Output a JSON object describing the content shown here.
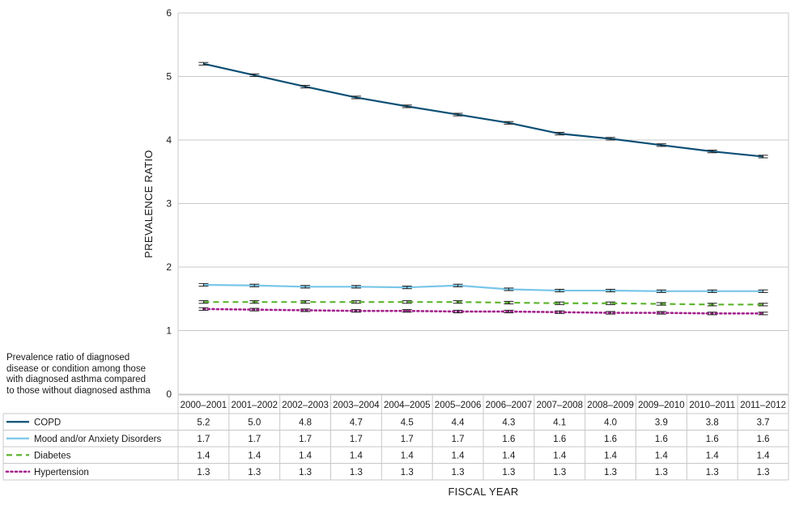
{
  "caption": "Prevalence ratio of diagnosed disease or condition among those with diagnosed asthma compared to those without diagnosed asthma",
  "chart_data": {
    "type": "line",
    "ylabel": "PREVALENCE RATIO",
    "xlabel": "FISCAL YEAR",
    "ylim": [
      0,
      6
    ],
    "yticks": [
      "0",
      "1",
      "2",
      "3",
      "4",
      "5",
      "6"
    ],
    "grid": true,
    "categories": [
      "2000–2001",
      "2001–2002",
      "2002–2003",
      "2003–2004",
      "2004–2005",
      "2005–2006",
      "2006–2007",
      "2007–2008",
      "2008–2009",
      "2009–2010",
      "2010–2011",
      "2011–2012"
    ],
    "series": [
      {
        "name": "COPD",
        "color": "#0b4f75",
        "style": "solid",
        "values": [
          5.2,
          5.02,
          4.84,
          4.67,
          4.53,
          4.4,
          4.27,
          4.1,
          4.02,
          3.92,
          3.82,
          3.74
        ],
        "table_values": [
          "5.2",
          "5.0",
          "4.8",
          "4.7",
          "4.5",
          "4.4",
          "4.3",
          "4.1",
          "4.0",
          "3.9",
          "3.8",
          "3.7"
        ]
      },
      {
        "name": "Mood and/or Anxiety Disorders",
        "color": "#78c6e8",
        "style": "solid",
        "values": [
          1.72,
          1.71,
          1.69,
          1.69,
          1.68,
          1.71,
          1.65,
          1.63,
          1.63,
          1.62,
          1.62,
          1.62
        ],
        "table_values": [
          "1.7",
          "1.7",
          "1.7",
          "1.7",
          "1.7",
          "1.7",
          "1.6",
          "1.6",
          "1.6",
          "1.6",
          "1.6",
          "1.6"
        ]
      },
      {
        "name": "Diabetes",
        "color": "#5db52f",
        "style": "dashed",
        "values": [
          1.45,
          1.45,
          1.45,
          1.45,
          1.45,
          1.45,
          1.44,
          1.43,
          1.43,
          1.42,
          1.41,
          1.41
        ],
        "table_values": [
          "1.4",
          "1.4",
          "1.4",
          "1.4",
          "1.4",
          "1.4",
          "1.4",
          "1.4",
          "1.4",
          "1.4",
          "1.4",
          "1.4"
        ]
      },
      {
        "name": "Hypertension",
        "color": "#a3238e",
        "style": "dotted",
        "values": [
          1.34,
          1.33,
          1.32,
          1.31,
          1.31,
          1.3,
          1.3,
          1.29,
          1.28,
          1.28,
          1.27,
          1.27
        ],
        "table_values": [
          "1.3",
          "1.3",
          "1.3",
          "1.3",
          "1.3",
          "1.3",
          "1.3",
          "1.3",
          "1.3",
          "1.3",
          "1.3",
          "1.3"
        ]
      }
    ]
  }
}
